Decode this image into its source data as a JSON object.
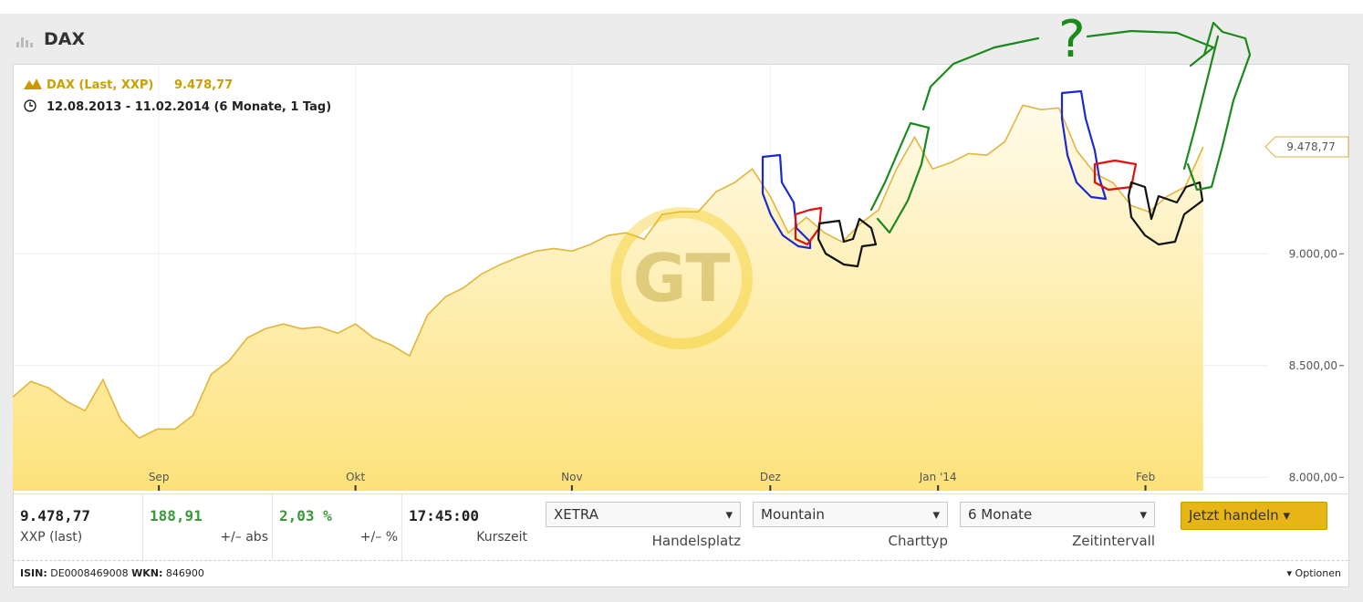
{
  "header": {
    "title": "DAX"
  },
  "chart_data": {
    "type": "line",
    "title": "DAX (Last, XXP)",
    "subtitle": "12.08.2013 - 11.02.2014 (6 Monate, 1 Tag)",
    "last_value": {
      "value": 9478.77,
      "label": "9.478,77"
    },
    "annotation": "?",
    "series": [
      {
        "name": "DAX (Last, XXP)",
        "color": "#e3b53c",
        "values": [
          8359,
          8429,
          8400,
          8339,
          8298,
          8437,
          8257,
          8176,
          8216,
          8216,
          8278,
          8461,
          8522,
          8624,
          8665,
          8686,
          8665,
          8673,
          8645,
          8686,
          8624,
          8592,
          8543,
          8727,
          8808,
          8849,
          8910,
          8951,
          8984,
          9012,
          9024,
          9012,
          9041,
          9082,
          9094,
          9065,
          9176,
          9188,
          9188,
          9278,
          9318,
          9380,
          9257,
          9094,
          9163,
          9094,
          9053,
          9135,
          9196,
          9380,
          9522,
          9380,
          9408,
          9449,
          9441,
          9502,
          9665,
          9645,
          9653,
          9461,
          9359,
          9318,
          9216,
          9188,
          9257,
          9300,
          9478.77
        ]
      }
    ],
    "xlim": [
      0,
      69.6
    ],
    "xticks": [
      {
        "value": 8.1,
        "label": "Sep"
      },
      {
        "value": 19,
        "label": "Okt"
      },
      {
        "value": 31,
        "label": "Nov"
      },
      {
        "value": 42,
        "label": "Dez"
      },
      {
        "value": 51.3,
        "label": "Jan '14"
      },
      {
        "value": 62.8,
        "label": "Feb"
      }
    ],
    "ylim": [
      7940,
      9850
    ],
    "yticks": [
      {
        "value": 8000,
        "label": "8.000,00"
      },
      {
        "value": 8500,
        "label": "8.500,00"
      },
      {
        "value": 9000,
        "label": "9.000,00"
      }
    ],
    "grid": true
  },
  "quote": {
    "cells": [
      {
        "value": "9.478,77",
        "label": "XXP (last)"
      },
      {
        "value": "188,91",
        "label": "+/– abs"
      },
      {
        "value": "2,03 %",
        "label": "+/– %"
      },
      {
        "value": "17:45:00",
        "label": "Kurszeit"
      }
    ],
    "selects": [
      {
        "value": "XETRA",
        "label": "Handelsplatz"
      },
      {
        "value": "Mountain",
        "label": "Charttyp"
      },
      {
        "value": "6 Monate",
        "label": "Zeitintervall"
      }
    ],
    "button": "Jetzt handeln"
  },
  "footer": {
    "isin_label": "ISIN:",
    "isin": "DE0008469008",
    "wkn_label": "WKN:",
    "wkn": "846900",
    "options": "Optionen"
  }
}
